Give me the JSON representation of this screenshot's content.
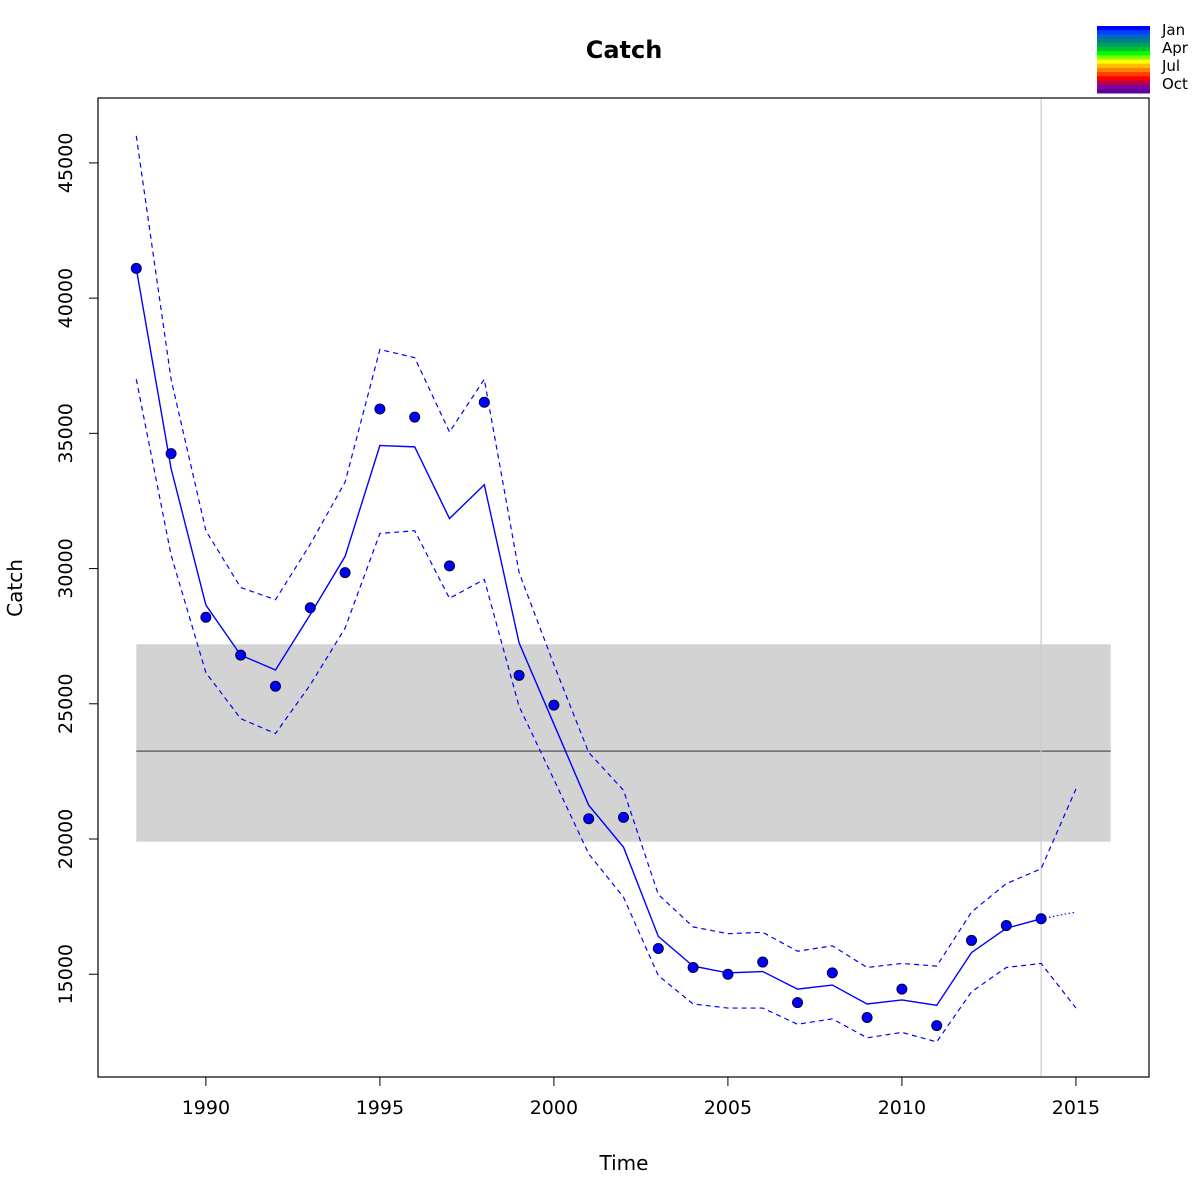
{
  "chart_data": {
    "type": "line",
    "title": "Catch",
    "xlabel": "Time",
    "ylabel": "Catch",
    "xlim": [
      1986.9,
      2017.1
    ],
    "ylim": [
      11200,
      47400
    ],
    "x_ticks": [
      1990,
      1995,
      2000,
      2005,
      2010,
      2015
    ],
    "y_ticks": [
      15000,
      20000,
      25000,
      30000,
      35000,
      40000,
      45000
    ],
    "x_tick_labels": [
      "1990",
      "1995",
      "2000",
      "2005",
      "2010",
      "2015"
    ],
    "y_tick_labels": [
      "15000",
      "20000",
      "25000",
      "30000",
      "35000",
      "40000",
      "45000"
    ],
    "grid": false,
    "observed_points": {
      "x": [
        1988,
        1989,
        1990,
        1991,
        1992,
        1993,
        1994,
        1995,
        1996,
        1997,
        1998,
        1999,
        2000,
        2001,
        2002,
        2003,
        2004,
        2005,
        2006,
        2007,
        2008,
        2009,
        2010,
        2011,
        2012,
        2013,
        2014
      ],
      "y": [
        41100,
        34250,
        28200,
        26800,
        25650,
        28550,
        29850,
        35900,
        35600,
        30100,
        36150,
        26050,
        24950,
        20750,
        20800,
        15950,
        15250,
        15000,
        15450,
        13950,
        15050,
        13400,
        14450,
        13100,
        16250,
        16800,
        17050
      ]
    },
    "series": [
      {
        "style": "solid",
        "x": [
          1988,
          1989,
          1990,
          1991,
          1992,
          1993,
          1994,
          1995,
          1996,
          1997,
          1998,
          1999,
          2000,
          2001,
          2002,
          2003,
          2004,
          2005,
          2006,
          2007,
          2008,
          2009,
          2010,
          2011,
          2012,
          2013,
          2014
        ],
        "y": [
          41100,
          33700,
          28650,
          26800,
          26250,
          28300,
          30450,
          34550,
          34500,
          31850,
          33100,
          27250,
          24250,
          21250,
          19700,
          16400,
          15300,
          15050,
          15100,
          14450,
          14600,
          13900,
          14050,
          13850,
          15800,
          16700,
          17050
        ]
      },
      {
        "style": "dashed",
        "x": [
          1988,
          1989,
          1990,
          1991,
          1992,
          1993,
          1994,
          1995,
          1996,
          1997,
          1998,
          1999,
          2000,
          2001,
          2002,
          2003,
          2004,
          2005,
          2006,
          2007,
          2008,
          2009,
          2010,
          2011,
          2012,
          2013,
          2014,
          2015
        ],
        "y": [
          46000,
          37000,
          31400,
          29300,
          28850,
          30900,
          33200,
          38100,
          37800,
          35050,
          37000,
          29850,
          26450,
          23200,
          21800,
          17950,
          16750,
          16500,
          16550,
          15850,
          16050,
          15250,
          15400,
          15300,
          17300,
          18350,
          18900,
          21850
        ]
      },
      {
        "style": "dashed",
        "x": [
          1988,
          1989,
          1990,
          1991,
          1992,
          1993,
          1994,
          1995,
          1996,
          1997,
          1998,
          1999,
          2000,
          2001,
          2002,
          2003,
          2004,
          2005,
          2006,
          2007,
          2008,
          2009,
          2010,
          2011,
          2012,
          2013,
          2014,
          2015
        ],
        "y": [
          37000,
          30500,
          26150,
          24450,
          23900,
          25700,
          27800,
          31300,
          31400,
          28900,
          29600,
          24900,
          22200,
          19450,
          17850,
          14950,
          13900,
          13750,
          13750,
          13150,
          13350,
          12650,
          12850,
          12500,
          14350,
          15250,
          15400,
          13750
        ]
      },
      {
        "style": "dotted",
        "x": [
          2014,
          2015
        ],
        "y": [
          17050,
          17300
        ]
      }
    ],
    "reference_line": {
      "y": 23250,
      "x_range": [
        1988,
        2016
      ]
    },
    "reference_band": {
      "y_range": [
        19900,
        27200
      ],
      "x_range": [
        1988,
        2016
      ]
    },
    "vertical_line": {
      "x": 2014
    },
    "legend": {
      "position": "top-right",
      "labels": [
        "Jan",
        "Apr",
        "Jul",
        "Oct"
      ],
      "colors": [
        "#0000FF",
        "#0040FF",
        "#0066CC",
        "#008080",
        "#00A060",
        "#00C030",
        "#00FF00",
        "#80FF00",
        "#FFFF00",
        "#FFC000",
        "#FF8000",
        "#FF4000",
        "#FF0000",
        "#C00040",
        "#8000A0",
        "#6000A0"
      ]
    },
    "colors": {
      "series": "#0000FF",
      "points_fill": "#0000FF",
      "points_stroke": "#000033",
      "band": "#D3D3D3",
      "reference_line": "#555555",
      "vertical_line": "#CCCCCC"
    }
  }
}
